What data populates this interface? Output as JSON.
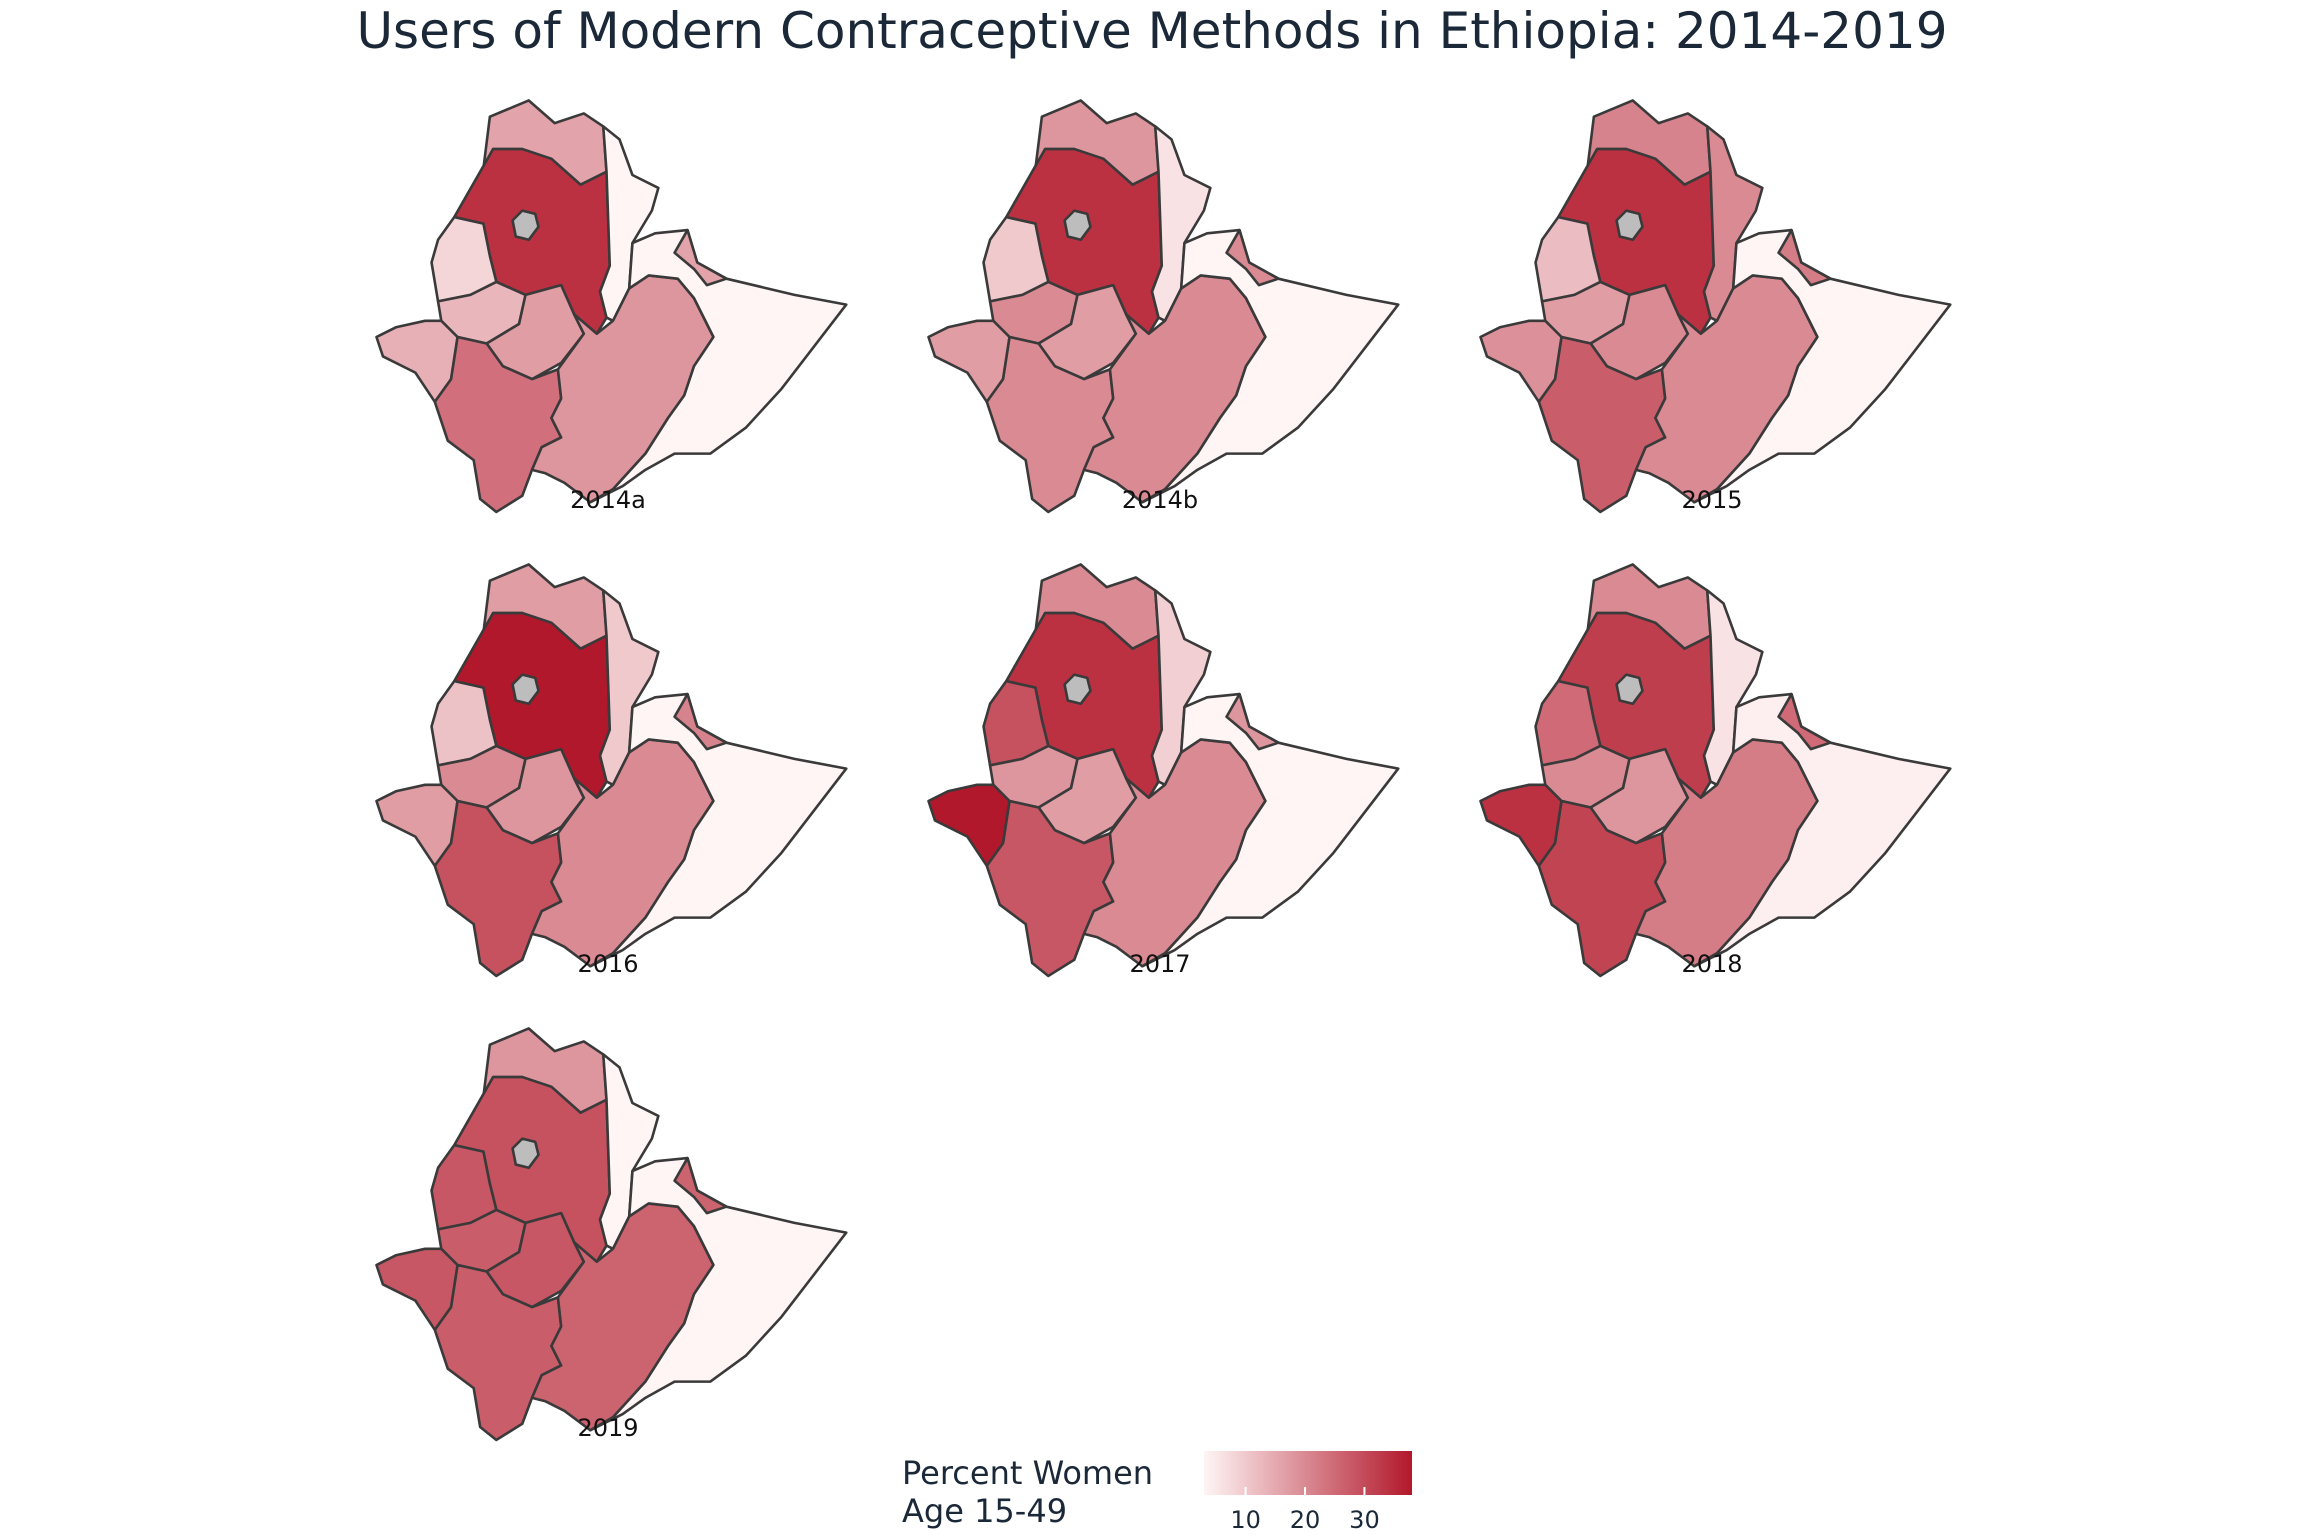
{
  "title": "Users of Modern Contraceptive Methods in Ethiopia: 2014-2019",
  "chart_data": {
    "type": "choropleth",
    "region_count": 12,
    "panels": [
      {
        "label": "2014a",
        "values": [
          null,
          16,
          34,
          8,
          3,
          13,
          17,
          24,
          18,
          2,
          14,
          16
        ]
      },
      {
        "label": "2014b",
        "values": [
          null,
          18,
          34,
          10,
          6,
          20,
          17,
          20,
          20,
          2,
          17,
          20
        ]
      },
      {
        "label": "2015",
        "values": [
          null,
          21,
          34,
          12,
          20,
          17,
          20,
          27,
          20,
          2,
          19,
          22
        ]
      },
      {
        "label": "2016",
        "values": [
          null,
          17,
          38,
          11,
          10,
          20,
          18,
          29,
          20,
          2,
          17,
          21
        ]
      },
      {
        "label": "2017",
        "values": [
          null,
          20,
          34,
          29,
          9,
          18,
          17,
          28,
          20,
          3,
          39,
          18
        ]
      },
      {
        "label": "2018",
        "values": [
          null,
          20,
          32,
          25,
          6,
          20,
          18,
          31,
          22,
          4,
          34,
          25
        ]
      },
      {
        "label": "2019",
        "values": [
          null,
          18,
          29,
          28,
          2,
          27,
          28,
          27,
          26,
          1,
          28,
          26
        ]
      }
    ],
    "color_scale": {
      "low": "#fff5f5",
      "high": "#b2182b",
      "min": 3,
      "max": 38
    },
    "missing_color": "#bdbdbd",
    "border_color": "#3a3a3a",
    "legend": {
      "title_line1": "Percent Women",
      "title_line2": "Age 15-49",
      "ticks": [
        10,
        20,
        30
      ]
    }
  }
}
